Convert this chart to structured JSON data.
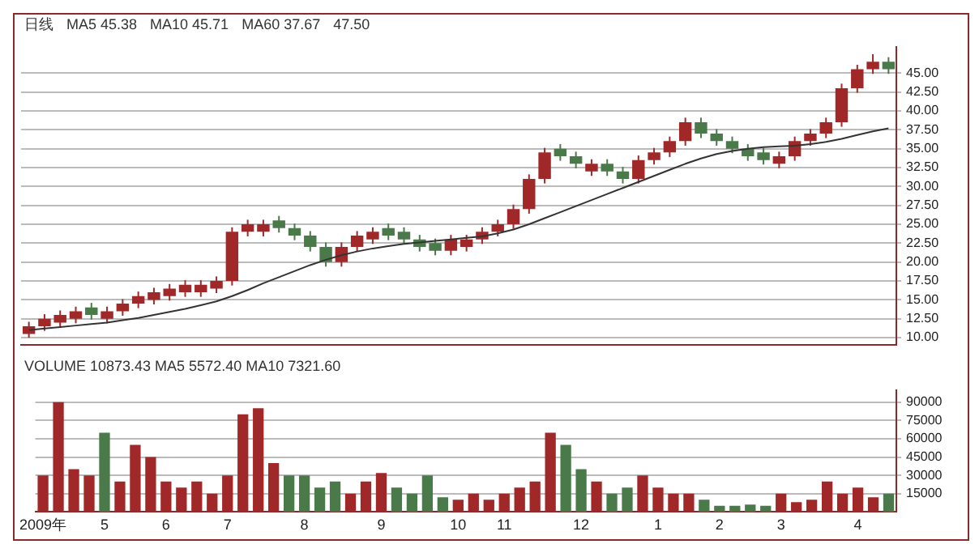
{
  "chart_data": [
    {
      "type": "candlestick",
      "title": "日线",
      "annotations": [
        "MA5 45.38",
        "MA10 45.71",
        "MA60 37.67",
        "47.50"
      ],
      "categories": [
        null,
        null,
        null,
        null,
        null,
        null,
        null,
        null,
        null,
        null,
        null,
        null,
        null,
        null,
        null,
        null,
        null,
        null,
        null,
        null,
        null,
        null,
        null,
        null,
        null,
        null,
        null,
        null,
        null,
        null,
        null,
        null,
        null,
        null,
        null,
        null,
        null,
        null,
        null,
        null,
        null,
        null,
        null,
        null,
        null,
        null,
        null,
        null,
        null,
        null,
        null,
        null,
        null,
        null,
        null,
        null
      ],
      "ohlc": [
        [
          10.5,
          12.1,
          10,
          11.5
        ],
        [
          11.5,
          13.1,
          10.9,
          12.5
        ],
        [
          12,
          13.6,
          11.4,
          13
        ],
        [
          12.5,
          14.1,
          11.9,
          13.5
        ],
        [
          14,
          14.6,
          12.4,
          13
        ],
        [
          12.5,
          14.1,
          11.9,
          13.5
        ],
        [
          13.5,
          15.1,
          12.9,
          14.5
        ],
        [
          14.5,
          16.1,
          13.9,
          15.5
        ],
        [
          15,
          16.6,
          14.4,
          16
        ],
        [
          15.5,
          17.1,
          14.9,
          16.5
        ],
        [
          16,
          17.6,
          15.4,
          17
        ],
        [
          16,
          17.6,
          15.4,
          17
        ],
        [
          16.5,
          18.1,
          15.9,
          17.5
        ],
        [
          17.5,
          24.6,
          16.9,
          24
        ],
        [
          24,
          25.6,
          23.4,
          25
        ],
        [
          24,
          25.6,
          23.4,
          25
        ],
        [
          25.5,
          26.1,
          23.9,
          24.5
        ],
        [
          24.5,
          25.1,
          22.9,
          23.5
        ],
        [
          23.5,
          24.1,
          21.4,
          22
        ],
        [
          22,
          22.6,
          19.4,
          20
        ],
        [
          20,
          22.6,
          19.4,
          22
        ],
        [
          22,
          24.1,
          21.4,
          23.5
        ],
        [
          23,
          24.6,
          22.4,
          24
        ],
        [
          24.5,
          25.1,
          22.9,
          23.5
        ],
        [
          24,
          24.6,
          22.4,
          23
        ],
        [
          23,
          23.6,
          21.4,
          22
        ],
        [
          22.5,
          23.1,
          20.9,
          21.5
        ],
        [
          21.5,
          23.6,
          20.9,
          23
        ],
        [
          22,
          23.6,
          21.4,
          23
        ],
        [
          23,
          24.6,
          22.4,
          24
        ],
        [
          24,
          25.6,
          23.4,
          25
        ],
        [
          25,
          27.6,
          24.4,
          27
        ],
        [
          27,
          31.6,
          26.4,
          31
        ],
        [
          31,
          35.1,
          30.4,
          34.5
        ],
        [
          35,
          35.6,
          33.4,
          34
        ],
        [
          34,
          34.6,
          32.4,
          33
        ],
        [
          32,
          33.6,
          31.4,
          33
        ],
        [
          33,
          33.6,
          31.4,
          32
        ],
        [
          32,
          32.6,
          30.4,
          31
        ],
        [
          31,
          34.1,
          30.4,
          33.5
        ],
        [
          33.5,
          35.1,
          32.9,
          34.5
        ],
        [
          34.5,
          36.6,
          33.9,
          36
        ],
        [
          36,
          39.1,
          35.4,
          38.5
        ],
        [
          38.5,
          39.1,
          36.4,
          37
        ],
        [
          37,
          37.6,
          35.4,
          36
        ],
        [
          36,
          36.6,
          34.4,
          35
        ],
        [
          35,
          35.6,
          33.4,
          34
        ],
        [
          34.5,
          35.1,
          32.9,
          33.5
        ],
        [
          33,
          34.6,
          32.4,
          34
        ],
        [
          34,
          36.6,
          33.4,
          36
        ],
        [
          36,
          37.6,
          35.4,
          37
        ],
        [
          37,
          39.1,
          36.4,
          38.5
        ],
        [
          38.5,
          43.6,
          37.9,
          43
        ],
        [
          43,
          46.1,
          42.4,
          45.5
        ],
        [
          45.5,
          47.5,
          44.9,
          46.5
        ],
        [
          46.5,
          47.1,
          44.9,
          45.5
        ]
      ],
      "colors": [
        "#a02828",
        "#a02828",
        "#a02828",
        "#a02828",
        "#4a7a4a",
        "#a02828",
        "#a02828",
        "#a02828",
        "#a02828",
        "#a02828",
        "#a02828",
        "#a02828",
        "#a02828",
        "#a02828",
        "#a02828",
        "#a02828",
        "#4a7a4a",
        "#4a7a4a",
        "#4a7a4a",
        "#4a7a4a",
        "#a02828",
        "#a02828",
        "#a02828",
        "#4a7a4a",
        "#4a7a4a",
        "#4a7a4a",
        "#4a7a4a",
        "#a02828",
        "#a02828",
        "#a02828",
        "#a02828",
        "#a02828",
        "#a02828",
        "#a02828",
        "#4a7a4a",
        "#4a7a4a",
        "#a02828",
        "#4a7a4a",
        "#4a7a4a",
        "#a02828",
        "#a02828",
        "#a02828",
        "#a02828",
        "#4a7a4a",
        "#4a7a4a",
        "#4a7a4a",
        "#4a7a4a",
        "#4a7a4a",
        "#a02828",
        "#a02828",
        "#a02828",
        "#a02828",
        "#a02828",
        "#a02828",
        "#a02828",
        "#4a7a4a"
      ],
      "series": [
        {
          "type": "line",
          "color": "#333333",
          "values": [
            11,
            11.2,
            11.4,
            11.6,
            11.8,
            12,
            12.3,
            12.6,
            13,
            13.4,
            13.8,
            14.3,
            14.8,
            15.5,
            16.3,
            17.2,
            18,
            18.8,
            19.6,
            20.3,
            20.9,
            21.4,
            21.8,
            22.1,
            22.4,
            22.6,
            22.8,
            23,
            23.2,
            23.4,
            23.8,
            24.3,
            25,
            25.8,
            26.6,
            27.4,
            28.2,
            29,
            29.8,
            30.6,
            31.4,
            32.2,
            33,
            33.7,
            34.3,
            34.7,
            35,
            35.2,
            35.3,
            35.4,
            35.6,
            35.9,
            36.3,
            36.8,
            37.3,
            37.7
          ]
        }
      ],
      "ylim": [
        9,
        48.5
      ],
      "yticks": [
        {
          "value": 10,
          "label": "10.00"
        },
        {
          "value": 12.5,
          "label": "12.50"
        },
        {
          "value": 15,
          "label": "15.00"
        },
        {
          "value": 17.5,
          "label": "17.50"
        },
        {
          "value": 20,
          "label": "20.00"
        },
        {
          "value": 22.5,
          "label": "22.50"
        },
        {
          "value": 25,
          "label": "25.00"
        },
        {
          "value": 27.5,
          "label": "27.50"
        },
        {
          "value": 30,
          "label": "30.00"
        },
        {
          "value": 32.5,
          "label": "32.50"
        },
        {
          "value": 35,
          "label": "35.00"
        },
        {
          "value": 37.5,
          "label": "37.50"
        },
        {
          "value": 40,
          "label": "40.00"
        },
        {
          "value": 42.5,
          "label": "42.50"
        },
        {
          "value": 45,
          "label": "45.00"
        }
      ],
      "grid": "y",
      "legend": false,
      "tick_labels": "y"
    },
    {
      "type": "bar",
      "annotations": [
        "VOLUME 10873.43 MA5 5572.40 MA10 7321.60"
      ],
      "categories": [
        "2009年",
        null,
        null,
        null,
        "5",
        null,
        null,
        null,
        "6",
        null,
        null,
        null,
        "7",
        null,
        null,
        null,
        null,
        "8",
        null,
        null,
        null,
        null,
        "9",
        null,
        null,
        null,
        null,
        "10",
        null,
        null,
        "11",
        null,
        null,
        null,
        null,
        "12",
        null,
        null,
        null,
        null,
        "1",
        null,
        null,
        null,
        "2",
        null,
        null,
        null,
        "3",
        null,
        null,
        null,
        null,
        "4",
        null,
        null
      ],
      "values": [
        30000,
        90000,
        35000,
        30000,
        65000,
        25000,
        55000,
        45000,
        25000,
        20000,
        25000,
        15000,
        30000,
        80000,
        85000,
        40000,
        30000,
        30000,
        20000,
        25000,
        15000,
        25000,
        32000,
        20000,
        15000,
        30000,
        12000,
        10000,
        15000,
        10000,
        15000,
        20000,
        25000,
        65000,
        55000,
        35000,
        25000,
        15000,
        20000,
        30000,
        20000,
        15000,
        15000,
        10000,
        5000,
        5000,
        6000,
        5000,
        15000,
        8000,
        10000,
        25000,
        15000,
        20000,
        12000,
        15000
      ],
      "colors": [
        "#a02828",
        "#a02828",
        "#a02828",
        "#a02828",
        "#4a7a4a",
        "#a02828",
        "#a02828",
        "#a02828",
        "#a02828",
        "#a02828",
        "#a02828",
        "#a02828",
        "#a02828",
        "#a02828",
        "#a02828",
        "#a02828",
        "#4a7a4a",
        "#4a7a4a",
        "#4a7a4a",
        "#4a7a4a",
        "#a02828",
        "#a02828",
        "#a02828",
        "#4a7a4a",
        "#4a7a4a",
        "#4a7a4a",
        "#4a7a4a",
        "#a02828",
        "#a02828",
        "#a02828",
        "#a02828",
        "#a02828",
        "#a02828",
        "#a02828",
        "#4a7a4a",
        "#4a7a4a",
        "#a02828",
        "#4a7a4a",
        "#4a7a4a",
        "#a02828",
        "#a02828",
        "#a02828",
        "#a02828",
        "#4a7a4a",
        "#4a7a4a",
        "#4a7a4a",
        "#4a7a4a",
        "#4a7a4a",
        "#a02828",
        "#a02828",
        "#a02828",
        "#a02828",
        "#a02828",
        "#a02828",
        "#a02828",
        "#4a7a4a"
      ],
      "ylim": [
        0,
        100000
      ],
      "yticks": [
        15000,
        30000,
        45000,
        60000,
        75000,
        90000
      ],
      "grid": "y",
      "legend": false
    }
  ]
}
